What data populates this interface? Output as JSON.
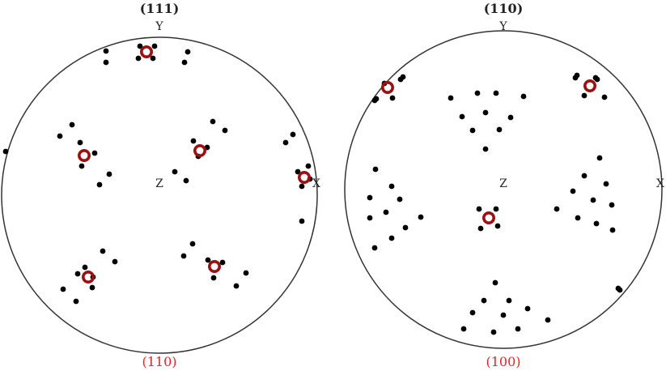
{
  "colors": {
    "outline": "#333333",
    "point": "#000000",
    "highlight": "#9b1111",
    "caption": "#e8202a"
  },
  "pole_figures": [
    {
      "title": "(111)",
      "caption": "(110)",
      "axes": {
        "x": "X",
        "y": "Y",
        "z": "Z"
      },
      "points": [
        [
          173,
          57
        ],
        [
          191,
          57
        ],
        [
          171,
          72
        ],
        [
          189,
          72
        ],
        [
          131,
          63
        ],
        [
          131,
          77
        ],
        [
          232,
          64
        ],
        [
          228,
          77
        ],
        [
          89,
          154
        ],
        [
          74,
          168
        ],
        [
          99,
          176
        ],
        [
          117,
          189
        ],
        [
          101,
          205
        ],
        [
          135,
          215
        ],
        [
          123,
          228
        ],
        [
          263,
          150
        ],
        [
          278,
          161
        ],
        [
          239,
          174
        ],
        [
          256,
          182
        ],
        [
          245,
          193
        ],
        [
          216,
          212
        ],
        [
          230,
          223
        ],
        [
          362,
          166
        ],
        [
          353,
          176
        ],
        [
          381,
          205
        ],
        [
          368,
          212
        ],
        [
          383,
          221
        ],
        [
          373,
          230
        ],
        [
          373,
          273
        ],
        [
          7,
          187
        ],
        [
          127,
          310
        ],
        [
          142,
          323
        ],
        [
          105,
          330
        ],
        [
          96,
          338
        ],
        [
          115,
          342
        ],
        [
          114,
          355
        ],
        [
          78,
          357
        ],
        [
          94,
          372
        ],
        [
          238,
          301
        ],
        [
          227,
          316
        ],
        [
          257,
          321
        ],
        [
          275,
          324
        ],
        [
          264,
          343
        ],
        [
          304,
          337
        ],
        [
          292,
          353
        ]
      ],
      "highlights": [
        [
          181,
          64
        ],
        [
          104,
          192
        ],
        [
          247,
          186
        ],
        [
          376,
          219
        ],
        [
          109,
          342
        ],
        [
          265,
          329
        ]
      ]
    },
    {
      "title": "(110)",
      "caption": "(100)",
      "axes": {
        "x": "X",
        "y": "Y",
        "z": "Z"
      },
      "points": [
        [
          475,
          103
        ],
        [
          498,
          95
        ],
        [
          495,
          98
        ],
        [
          463,
          124
        ],
        [
          465,
          122
        ],
        [
          485,
          121
        ],
        [
          713,
          93
        ],
        [
          711,
          96
        ],
        [
          736,
          96
        ],
        [
          738,
          98
        ],
        [
          722,
          118
        ],
        [
          747,
          120
        ],
        [
          557,
          121
        ],
        [
          590,
          115
        ],
        [
          613,
          115
        ],
        [
          647,
          119
        ],
        [
          571,
          144
        ],
        [
          600,
          139
        ],
        [
          631,
          145
        ],
        [
          584,
          161
        ],
        [
          617,
          160
        ],
        [
          600,
          184
        ],
        [
          464,
          209
        ],
        [
          484,
          230
        ],
        [
          457,
          244
        ],
        [
          494,
          246
        ],
        [
          477,
          262
        ],
        [
          520,
          268
        ],
        [
          457,
          269
        ],
        [
          501,
          281
        ],
        [
          484,
          294
        ],
        [
          463,
          306
        ],
        [
          741,
          195
        ],
        [
          722,
          217
        ],
        [
          749,
          227
        ],
        [
          708,
          236
        ],
        [
          733,
          247
        ],
        [
          756,
          253
        ],
        [
          688,
          258
        ],
        [
          714,
          269
        ],
        [
          737,
          276
        ],
        [
          757,
          284
        ],
        [
          592,
          258
        ],
        [
          613,
          258
        ],
        [
          594,
          282
        ],
        [
          615,
          279
        ],
        [
          612,
          349
        ],
        [
          598,
          371
        ],
        [
          629,
          371
        ],
        [
          584,
          386
        ],
        [
          622,
          389
        ],
        [
          652,
          381
        ],
        [
          573,
          406
        ],
        [
          610,
          410
        ],
        [
          640,
          406
        ],
        [
          677,
          395
        ],
        [
          764,
          356
        ],
        [
          766,
          358
        ]
      ],
      "highlights": [
        [
          479,
          108
        ],
        [
          729,
          106
        ],
        [
          604,
          269
        ]
      ]
    }
  ]
}
